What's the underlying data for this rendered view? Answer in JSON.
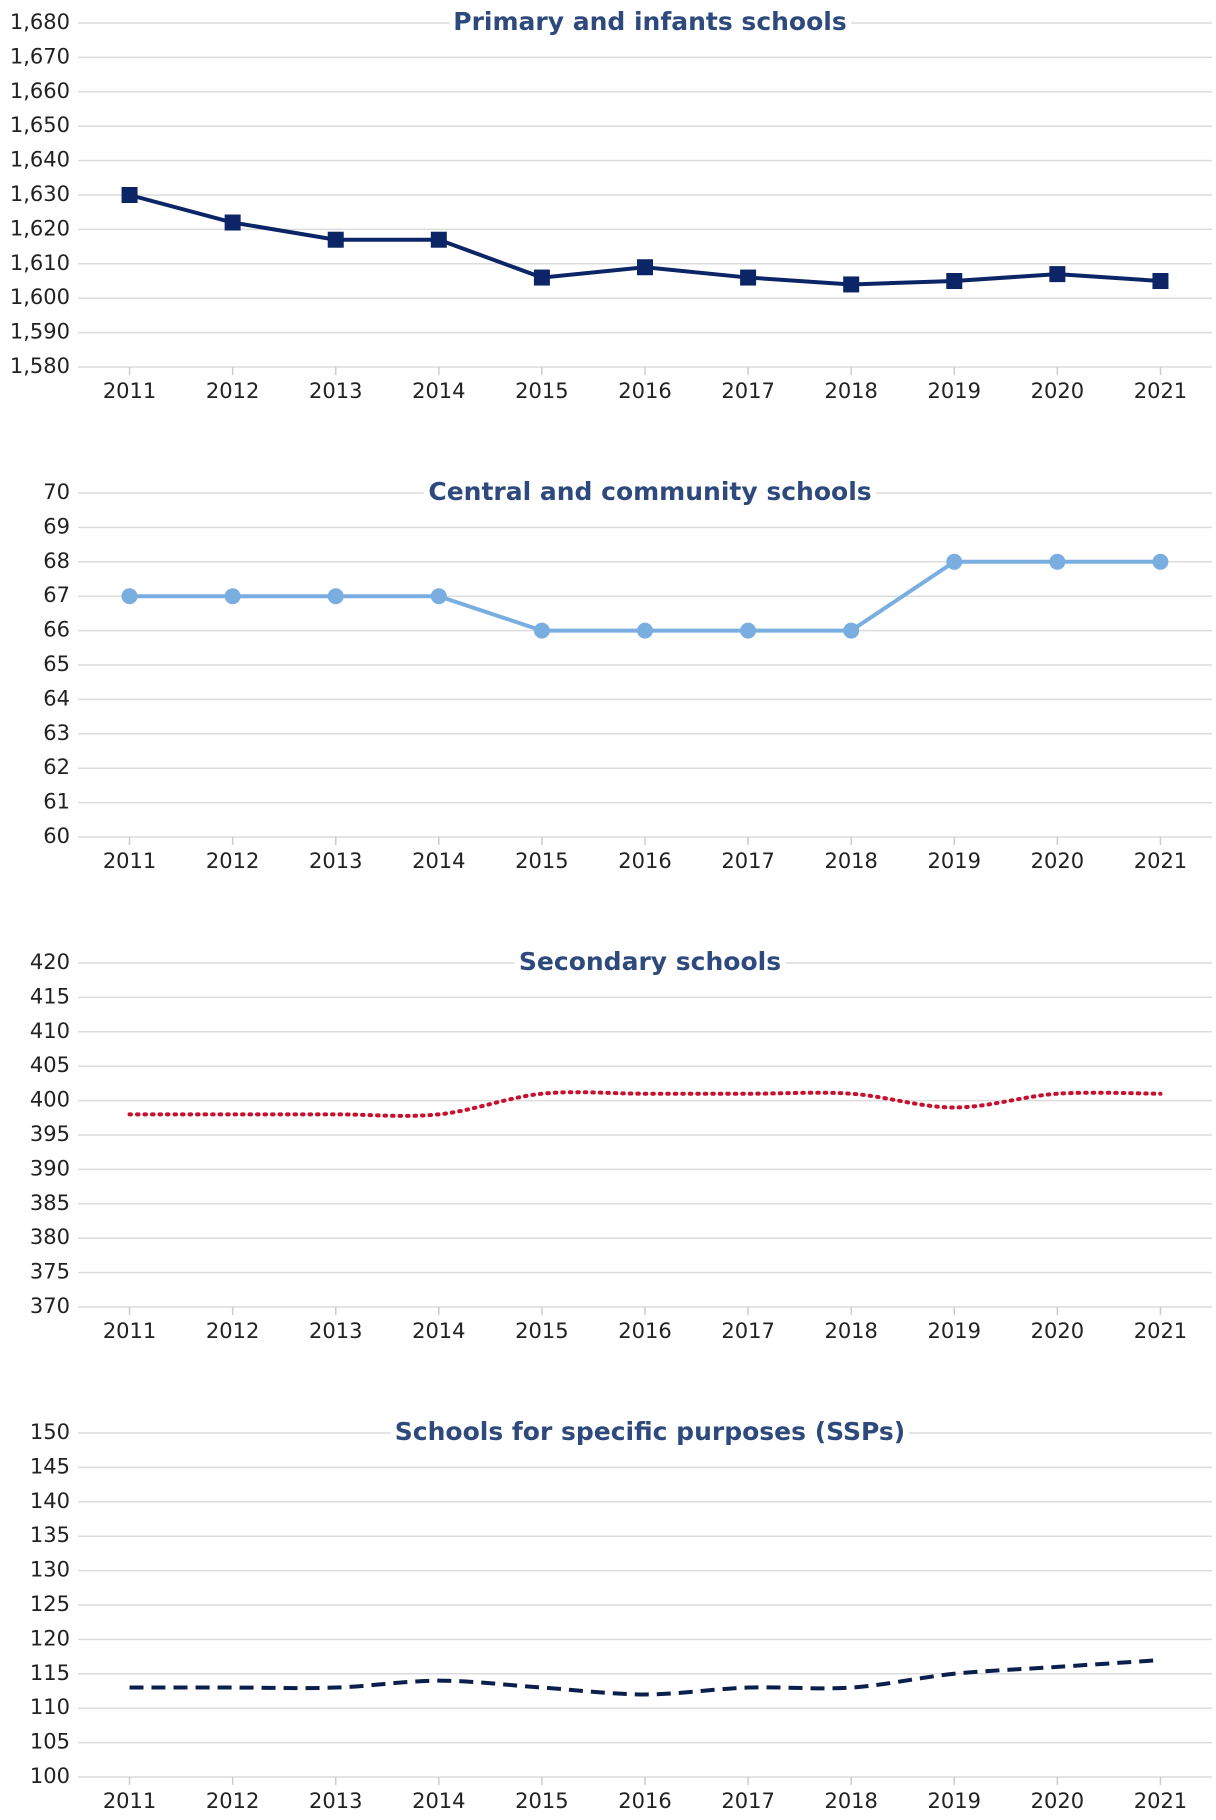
{
  "chart_data": [
    {
      "type": "line",
      "title": "Primary and infants schools",
      "categories": [
        "2011",
        "2012",
        "2013",
        "2014",
        "2015",
        "2016",
        "2017",
        "2018",
        "2019",
        "2020",
        "2021"
      ],
      "series": [
        {
          "name": "Primary and infants schools",
          "color": "#0b2566",
          "values": [
            1630,
            1622,
            1617,
            1617,
            1606,
            1609,
            1606,
            1604,
            1605,
            1607,
            1605
          ]
        }
      ],
      "marker": "square",
      "line_style": "solid",
      "smooth": false,
      "grid": true,
      "ylim": [
        1580,
        1680
      ],
      "yticks": [
        {
          "value": 1580,
          "label": "1,580"
        },
        {
          "value": 1590,
          "label": "1,590"
        },
        {
          "value": 1600,
          "label": "1,600"
        },
        {
          "value": 1610,
          "label": "1,610"
        },
        {
          "value": 1620,
          "label": "1,620"
        },
        {
          "value": 1630,
          "label": "1,630"
        },
        {
          "value": 1640,
          "label": "1,640"
        },
        {
          "value": 1650,
          "label": "1,650"
        },
        {
          "value": 1660,
          "label": "1,660"
        },
        {
          "value": 1670,
          "label": "1,670"
        },
        {
          "value": 1680,
          "label": "1,680"
        }
      ]
    },
    {
      "type": "line",
      "title": "Central and community schools",
      "categories": [
        "2011",
        "2012",
        "2013",
        "2014",
        "2015",
        "2016",
        "2017",
        "2018",
        "2019",
        "2020",
        "2021"
      ],
      "series": [
        {
          "name": "Central and community schools",
          "color": "#7aaee0",
          "values": [
            67,
            67,
            67,
            67,
            66,
            66,
            66,
            66,
            68,
            68,
            68
          ]
        }
      ],
      "marker": "circle",
      "line_style": "solid",
      "smooth": false,
      "grid": true,
      "ylim": [
        60,
        70
      ],
      "yticks": [
        60,
        61,
        62,
        63,
        64,
        65,
        66,
        67,
        68,
        69,
        70
      ]
    },
    {
      "type": "line",
      "title": "Secondary schools",
      "categories": [
        "2011",
        "2012",
        "2013",
        "2014",
        "2015",
        "2016",
        "2017",
        "2018",
        "2019",
        "2020",
        "2021"
      ],
      "series": [
        {
          "name": "Secondary schools",
          "color": "#c8102e",
          "values": [
            398,
            398,
            398,
            398,
            401,
            401,
            401,
            401,
            399,
            401,
            401
          ]
        }
      ],
      "marker": "none",
      "line_style": "dotted",
      "smooth": true,
      "grid": true,
      "ylim": [
        370,
        420
      ],
      "yticks": [
        370,
        375,
        380,
        385,
        390,
        395,
        400,
        405,
        410,
        415,
        420
      ]
    },
    {
      "type": "line",
      "title": "Schools for specific purposes (SSPs)",
      "categories": [
        "2011",
        "2012",
        "2013",
        "2014",
        "2015",
        "2016",
        "2017",
        "2018",
        "2019",
        "2020",
        "2021"
      ],
      "series": [
        {
          "name": "Schools for specific purposes (SSPs)",
          "color": "#0b1f4d",
          "values": [
            113,
            113,
            113,
            114,
            113,
            112,
            113,
            113,
            115,
            116,
            117
          ]
        }
      ],
      "marker": "none",
      "line_style": "dashed",
      "smooth": true,
      "grid": true,
      "ylim": [
        100,
        150
      ],
      "yticks": [
        100,
        105,
        110,
        115,
        120,
        125,
        130,
        135,
        140,
        145,
        150
      ]
    }
  ]
}
